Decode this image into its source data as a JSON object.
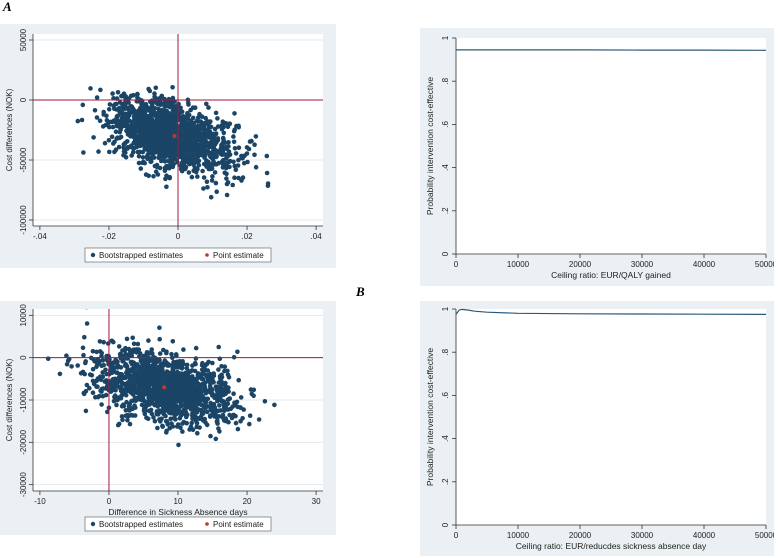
{
  "panel_labels": {
    "a": "A",
    "b": "B"
  },
  "colors": {
    "background": "#eaf0f3",
    "plot_bg": "#ffffff",
    "gridline": "#e3eaee",
    "point": "#1b4566",
    "point_estimate": "#c0392b",
    "quadrant_line": "#a1193d",
    "curve": "#2a5a7a"
  },
  "chart_data": [
    {
      "type": "scatter",
      "id": "A-plane",
      "title": "",
      "xlabel": "",
      "ylabel": "Cost differences (NOK)",
      "xlim": [
        -0.042,
        0.042
      ],
      "ylim": [
        -105000,
        55000
      ],
      "x_ticks": [
        -0.04,
        -0.02,
        0,
        0.02,
        0.04
      ],
      "x_tick_labels": [
        "-.04",
        "-.02",
        "0",
        ".02",
        ".04"
      ],
      "y_ticks": [
        50000,
        0,
        -50000,
        -100000
      ],
      "y_tick_labels": [
        "50000",
        "0",
        "-50000",
        "-100000"
      ],
      "cloud": {
        "center_x": -0.002,
        "center_y": -30000,
        "sd_x": 0.009,
        "sd_y": 15000,
        "rho": -0.45,
        "n_points": 1500
      },
      "point_estimate": {
        "x": -0.001,
        "y": -30000
      },
      "reference_lines": {
        "x": 0,
        "y": 0
      },
      "legend": [
        "Bootstrapped estimates",
        "Point estimate"
      ],
      "grid": true
    },
    {
      "type": "line",
      "id": "A-ceac",
      "title": "",
      "xlabel": "Ceiling ratio: EUR/QALY gained",
      "ylabel": "Probability intervention cost-effective",
      "xlim": [
        0,
        50000
      ],
      "ylim": [
        0,
        1
      ],
      "x_ticks": [
        0,
        10000,
        20000,
        30000,
        40000,
        50000
      ],
      "x_tick_labels": [
        "0",
        "10000",
        "20000",
        "30000",
        "40000",
        "50000"
      ],
      "y_ticks": [
        0,
        0.2,
        0.4,
        0.6,
        0.8,
        1
      ],
      "y_tick_labels": [
        "0",
        ".2",
        ".4",
        ".6",
        ".8",
        "1"
      ],
      "x": [
        0,
        10000,
        20000,
        30000,
        40000,
        50000
      ],
      "y": [
        0.945,
        0.945,
        0.945,
        0.944,
        0.944,
        0.943
      ],
      "grid": false
    },
    {
      "type": "scatter",
      "id": "B-plane",
      "title": "",
      "xlabel": "Difference in Sickness Absence days",
      "ylabel": "Cost differences (NOK)",
      "xlim": [
        -11,
        31
      ],
      "ylim": [
        -31500,
        11500
      ],
      "x_ticks": [
        -10,
        0,
        10,
        20,
        30
      ],
      "x_tick_labels": [
        "-10",
        "0",
        "10",
        "20",
        "30"
      ],
      "y_ticks": [
        10000,
        0,
        -10000,
        -20000,
        -30000
      ],
      "y_tick_labels": [
        "10000",
        "0",
        "-10000",
        "-20000",
        "-30000"
      ],
      "cloud": {
        "center_x": 8,
        "center_y": -7000,
        "sd_x": 5,
        "sd_y": 4200,
        "rho": -0.4,
        "n_points": 1500
      },
      "point_estimate": {
        "x": 8,
        "y": -7000
      },
      "reference_lines": {
        "x": 0,
        "y": 0
      },
      "legend": [
        "Bootstrapped estimates",
        "Point estimate"
      ],
      "grid": true
    },
    {
      "type": "line",
      "id": "B-ceac",
      "title": "",
      "xlabel": "Ceiling ratio: EUR/reducdes sickness absence day",
      "ylabel": "Probability intervention cost-effective",
      "xlim": [
        0,
        50000
      ],
      "ylim": [
        0,
        1
      ],
      "x_ticks": [
        0,
        10000,
        20000,
        30000,
        40000,
        50000
      ],
      "x_tick_labels": [
        "0",
        "10000",
        "20000",
        "30000",
        "40000",
        "50000"
      ],
      "y_ticks": [
        0,
        0.2,
        0.4,
        0.6,
        0.8,
        1
      ],
      "y_tick_labels": [
        "0",
        ".2",
        ".4",
        ".6",
        ".8",
        "1"
      ],
      "x": [
        0,
        500,
        1000,
        2000,
        3000,
        5000,
        10000,
        20000,
        30000,
        40000,
        50000
      ],
      "y": [
        0.975,
        0.995,
        0.998,
        0.995,
        0.99,
        0.985,
        0.98,
        0.978,
        0.977,
        0.976,
        0.975
      ],
      "grid": false
    }
  ]
}
